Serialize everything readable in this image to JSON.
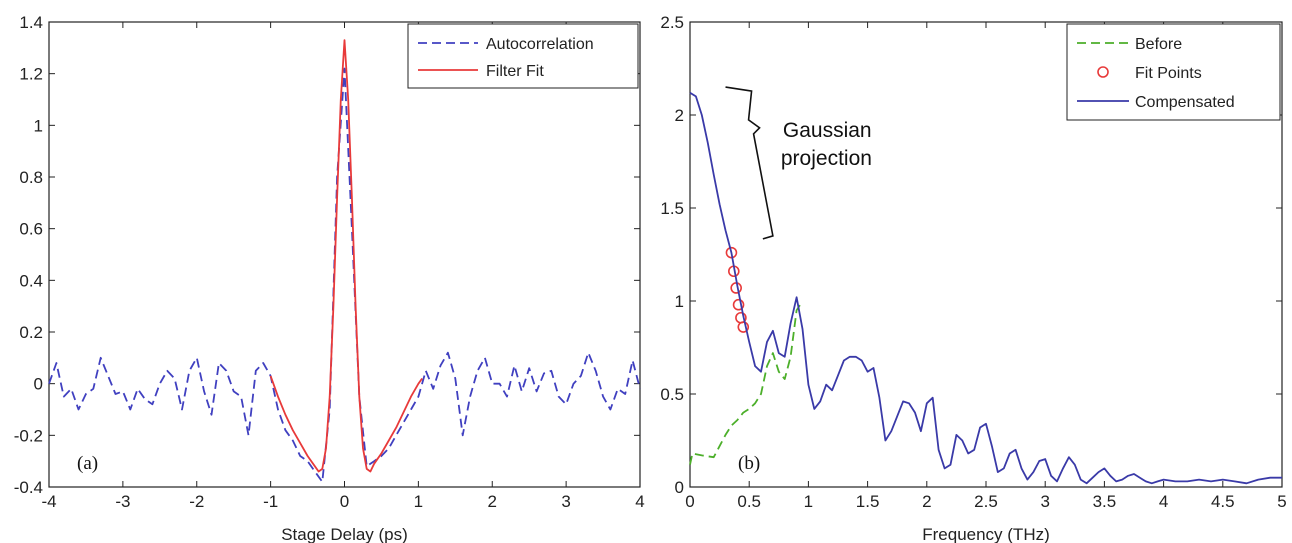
{
  "chart_data": [
    {
      "type": "line",
      "panel_label": "(a)",
      "xlabel": "Stage Delay (ps)",
      "ylabel": "",
      "xlim": [
        -4,
        4
      ],
      "ylim": [
        -0.4,
        1.4
      ],
      "xticks": [
        "-4",
        "-3",
        "-2",
        "-1",
        "0",
        "1",
        "2",
        "3",
        "4"
      ],
      "yticks": [
        "-0.4",
        "-0.2",
        "0",
        "0.2",
        "0.4",
        "0.6",
        "0.8",
        "1",
        "1.2",
        "1.4"
      ],
      "legend_position": "top-right",
      "series": [
        {
          "name": "Autocorrelation",
          "style": "dashed",
          "color": "#4040c0",
          "x": [
            -4.0,
            -3.9,
            -3.8,
            -3.7,
            -3.6,
            -3.5,
            -3.4,
            -3.3,
            -3.2,
            -3.1,
            -3.0,
            -2.9,
            -2.8,
            -2.7,
            -2.6,
            -2.5,
            -2.4,
            -2.3,
            -2.2,
            -2.1,
            -2.0,
            -1.9,
            -1.8,
            -1.7,
            -1.6,
            -1.5,
            -1.4,
            -1.3,
            -1.2,
            -1.1,
            -1.0,
            -0.9,
            -0.8,
            -0.7,
            -0.6,
            -0.5,
            -0.4,
            -0.3,
            -0.2,
            -0.1,
            0.0,
            0.1,
            0.2,
            0.3,
            0.4,
            0.5,
            0.6,
            0.7,
            0.8,
            0.9,
            1.0,
            1.1,
            1.2,
            1.3,
            1.4,
            1.5,
            1.6,
            1.7,
            1.8,
            1.9,
            2.0,
            2.1,
            2.2,
            2.3,
            2.4,
            2.5,
            2.6,
            2.7,
            2.8,
            2.9,
            3.0,
            3.1,
            3.2,
            3.3,
            3.4,
            3.5,
            3.6,
            3.7,
            3.8,
            3.9,
            4.0
          ],
          "y": [
            0.0,
            0.08,
            -0.05,
            -0.02,
            -0.1,
            -0.04,
            -0.02,
            0.1,
            0.03,
            -0.04,
            -0.03,
            -0.1,
            -0.02,
            -0.06,
            -0.08,
            0.0,
            0.05,
            0.02,
            -0.1,
            0.05,
            0.1,
            -0.03,
            -0.12,
            0.08,
            0.05,
            -0.03,
            -0.05,
            -0.2,
            0.05,
            0.08,
            0.03,
            -0.1,
            -0.18,
            -0.22,
            -0.28,
            -0.3,
            -0.34,
            -0.38,
            -0.1,
            0.8,
            1.22,
            0.6,
            -0.05,
            -0.32,
            -0.3,
            -0.28,
            -0.25,
            -0.2,
            -0.15,
            -0.1,
            -0.05,
            0.05,
            -0.02,
            0.07,
            0.12,
            0.02,
            -0.2,
            -0.05,
            0.05,
            0.1,
            0.0,
            0.0,
            -0.05,
            0.07,
            -0.03,
            0.06,
            -0.03,
            0.04,
            0.05,
            -0.05,
            -0.08,
            0.0,
            0.03,
            0.12,
            0.05,
            -0.05,
            -0.1,
            -0.02,
            -0.04,
            0.09,
            -0.02
          ]
        },
        {
          "name": "Filter Fit",
          "style": "solid",
          "color": "#e83a3a",
          "x": [
            -1.0,
            -0.9,
            -0.8,
            -0.7,
            -0.6,
            -0.5,
            -0.4,
            -0.35,
            -0.3,
            -0.25,
            -0.2,
            -0.15,
            -0.1,
            -0.05,
            0.0,
            0.05,
            0.1,
            0.15,
            0.2,
            0.25,
            0.3,
            0.35,
            0.4,
            0.5,
            0.6,
            0.7,
            0.8,
            0.9,
            1.0,
            1.05
          ],
          "y": [
            0.03,
            -0.05,
            -0.12,
            -0.18,
            -0.23,
            -0.28,
            -0.32,
            -0.34,
            -0.33,
            -0.25,
            -0.05,
            0.3,
            0.72,
            1.1,
            1.33,
            1.1,
            0.72,
            0.3,
            -0.05,
            -0.25,
            -0.33,
            -0.34,
            -0.31,
            -0.27,
            -0.22,
            -0.17,
            -0.11,
            -0.05,
            0.0,
            0.02
          ]
        }
      ]
    },
    {
      "type": "line",
      "panel_label": "(b)",
      "xlabel": "Frequency (THz)",
      "ylabel": "",
      "xlim": [
        0,
        5
      ],
      "ylim": [
        0,
        2.5
      ],
      "xticks": [
        "0",
        "0.5",
        "1",
        "1.5",
        "2",
        "2.5",
        "3",
        "3.5",
        "4",
        "4.5",
        "5"
      ],
      "yticks": [
        "0",
        "0.5",
        "1",
        "1.5",
        "2",
        "2.5"
      ],
      "legend_position": "top-right",
      "annotation": {
        "text_line1": "Gaussian",
        "text_line2": "projection",
        "bracket_x_range": [
          0.3,
          0.7
        ],
        "bracket_y_range": [
          1.35,
          2.15
        ]
      },
      "series": [
        {
          "name": "Before",
          "style": "dashed",
          "color": "#4caf2a",
          "x": [
            0.0,
            0.02,
            0.1,
            0.2,
            0.25,
            0.3,
            0.35,
            0.4,
            0.45,
            0.5,
            0.55,
            0.6,
            0.65,
            0.7,
            0.75,
            0.8,
            0.85,
            0.9,
            0.95
          ],
          "y": [
            0.12,
            0.18,
            0.17,
            0.16,
            0.22,
            0.28,
            0.33,
            0.36,
            0.4,
            0.42,
            0.45,
            0.5,
            0.65,
            0.72,
            0.62,
            0.58,
            0.7,
            0.95,
            1.0
          ]
        },
        {
          "name": "Fit Points",
          "style": "markers",
          "color": "#e83a3a",
          "x": [
            0.35,
            0.37,
            0.39,
            0.41,
            0.43,
            0.45
          ],
          "y": [
            1.26,
            1.16,
            1.07,
            0.98,
            0.91,
            0.86
          ]
        },
        {
          "name": "Compensated",
          "style": "solid",
          "color": "#3a3aa8",
          "x": [
            0.0,
            0.05,
            0.1,
            0.15,
            0.2,
            0.25,
            0.3,
            0.35,
            0.4,
            0.45,
            0.5,
            0.55,
            0.6,
            0.65,
            0.7,
            0.75,
            0.8,
            0.85,
            0.9,
            0.95,
            1.0,
            1.05,
            1.1,
            1.15,
            1.2,
            1.25,
            1.3,
            1.35,
            1.4,
            1.45,
            1.5,
            1.55,
            1.6,
            1.65,
            1.7,
            1.75,
            1.8,
            1.85,
            1.9,
            1.95,
            2.0,
            2.05,
            2.1,
            2.15,
            2.2,
            2.25,
            2.3,
            2.35,
            2.4,
            2.45,
            2.5,
            2.55,
            2.6,
            2.65,
            2.7,
            2.75,
            2.8,
            2.85,
            2.9,
            2.95,
            3.0,
            3.05,
            3.1,
            3.15,
            3.2,
            3.25,
            3.3,
            3.35,
            3.4,
            3.45,
            3.5,
            3.55,
            3.6,
            3.65,
            3.7,
            3.75,
            3.8,
            3.85,
            3.9,
            3.95,
            4.0,
            4.1,
            4.2,
            4.3,
            4.4,
            4.5,
            4.6,
            4.7,
            4.8,
            4.9,
            5.0
          ],
          "y": [
            2.12,
            2.1,
            2.0,
            1.85,
            1.68,
            1.52,
            1.38,
            1.26,
            1.08,
            0.92,
            0.78,
            0.65,
            0.62,
            0.78,
            0.84,
            0.72,
            0.7,
            0.88,
            1.02,
            0.85,
            0.55,
            0.42,
            0.46,
            0.55,
            0.52,
            0.6,
            0.68,
            0.7,
            0.7,
            0.68,
            0.62,
            0.64,
            0.48,
            0.25,
            0.3,
            0.38,
            0.46,
            0.45,
            0.4,
            0.3,
            0.45,
            0.48,
            0.2,
            0.1,
            0.12,
            0.28,
            0.25,
            0.18,
            0.2,
            0.32,
            0.34,
            0.22,
            0.08,
            0.1,
            0.18,
            0.2,
            0.1,
            0.04,
            0.08,
            0.14,
            0.15,
            0.06,
            0.03,
            0.1,
            0.16,
            0.12,
            0.04,
            0.02,
            0.05,
            0.08,
            0.1,
            0.06,
            0.03,
            0.04,
            0.06,
            0.07,
            0.05,
            0.03,
            0.02,
            0.03,
            0.04,
            0.03,
            0.03,
            0.04,
            0.03,
            0.04,
            0.03,
            0.02,
            0.04,
            0.05,
            0.05
          ]
        }
      ]
    }
  ]
}
